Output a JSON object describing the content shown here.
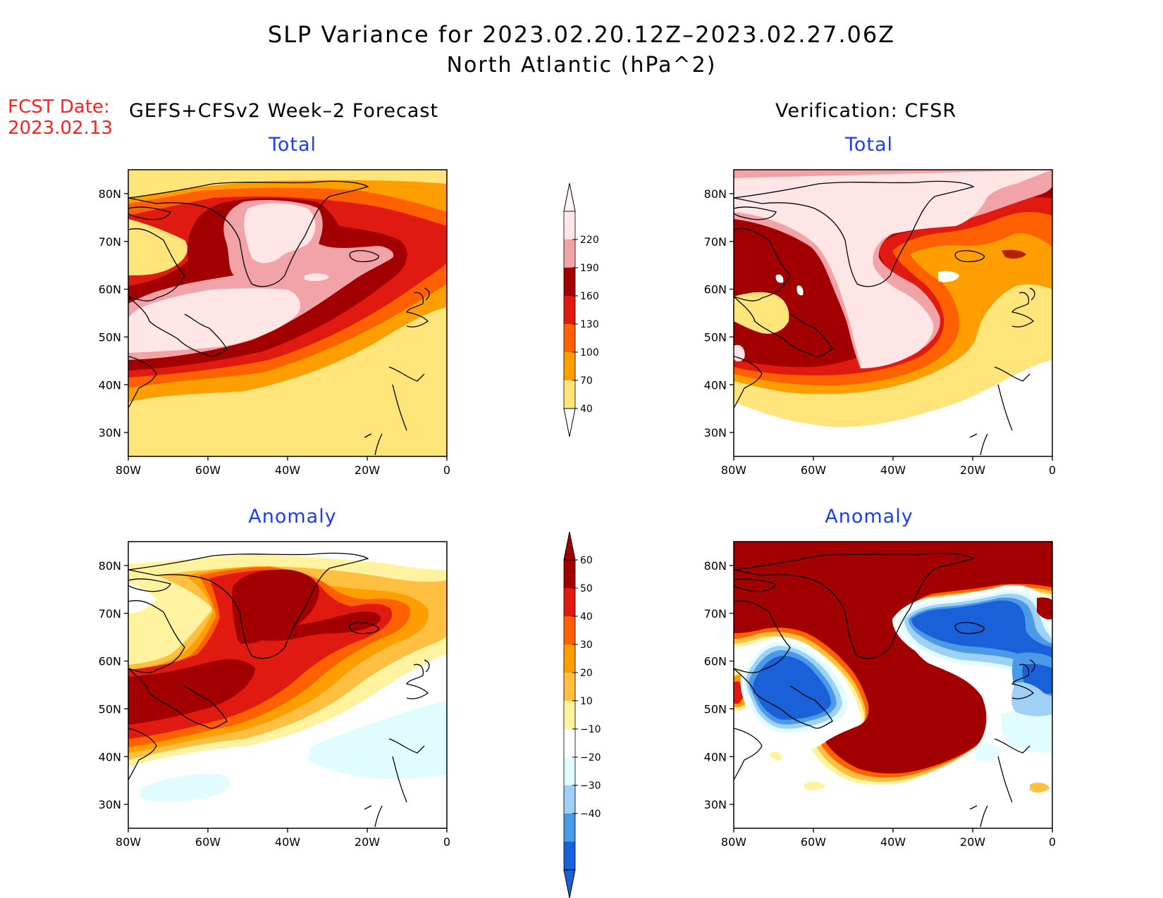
{
  "title": {
    "line1": "SLP Variance for 2023.02.20.12Z–2023.02.27.06Z",
    "line2": "North Atlantic (hPa^2)"
  },
  "fcst_date": {
    "label": "FCST Date:",
    "value": "2023.02.13"
  },
  "left_header": "GEFS+CFSv2 Week–2 Forecast",
  "right_header": "Verification: CFSR",
  "panel_titles": {
    "total": "Total",
    "anomaly": "Anomaly"
  },
  "lat_ticks": [
    "80N",
    "70N",
    "60N",
    "50N",
    "40N",
    "30N"
  ],
  "lon_ticks": [
    "80W",
    "60W",
    "40W",
    "20W",
    "0"
  ],
  "total_colorbar": {
    "levels": [
      "220",
      "190",
      "160",
      "130",
      "100",
      "70",
      "40"
    ],
    "colors": [
      "#ffe6e6",
      "#f2a3a8",
      "#a20000",
      "#e01a10",
      "#ff6000",
      "#ff9e00",
      "#ffe57a"
    ]
  },
  "anomaly_colorbar": {
    "levels": [
      "60",
      "50",
      "40",
      "30",
      "20",
      "10",
      "−10",
      "−20",
      "−30",
      "−40"
    ],
    "colors": [
      "#a20000",
      "#e01a10",
      "#ff6000",
      "#ff9e00",
      "#ffbf40",
      "#fff3a0",
      "#ffffff",
      "#e0fcff",
      "#9fd0f5",
      "#4a9ae8",
      "#1a60d8"
    ]
  },
  "colors": {
    "red_text": "#ff2020",
    "blue_text": "#1a3cff",
    "frame": "#000000"
  }
}
